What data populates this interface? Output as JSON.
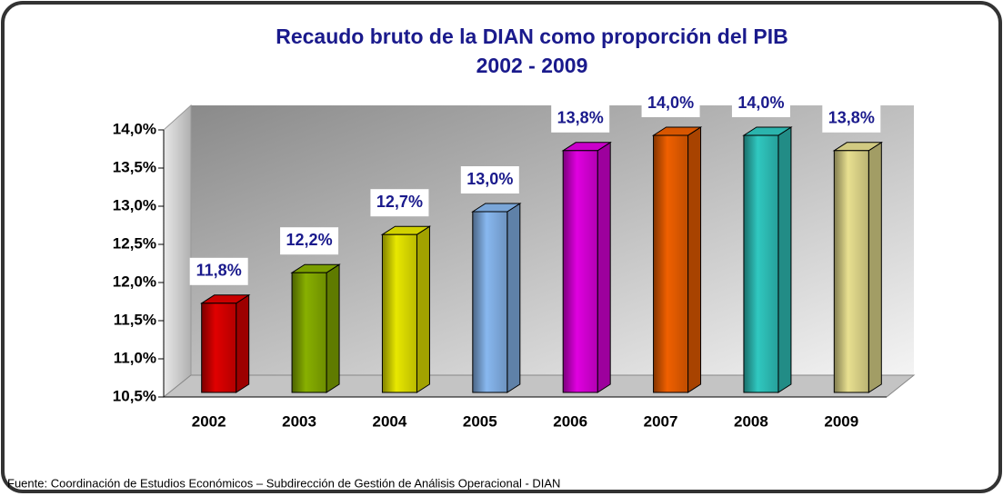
{
  "chart_data": {
    "type": "bar3d",
    "title": "Recaudo bruto de la DIAN como proporción del PIB",
    "subtitle": "2002 - 2009",
    "categories": [
      "2002",
      "2003",
      "2004",
      "2005",
      "2006",
      "2007",
      "2008",
      "2009"
    ],
    "values": [
      11.8,
      12.2,
      12.7,
      13.0,
      13.8,
      14.0,
      14.0,
      13.8
    ],
    "value_labels": [
      "11,8%",
      "12,2%",
      "12,7%",
      "13,0%",
      "13,8%",
      "14,0%",
      "14,0%",
      "13,8%"
    ],
    "colors": [
      "#e00000",
      "#88b000",
      "#e8e800",
      "#88b8f0",
      "#e000e0",
      "#f06000",
      "#30c8c0",
      "#e8e090"
    ],
    "ylim": [
      10.5,
      14.0
    ],
    "yticks": [
      {
        "value": 10.5,
        "label": "10,5%"
      },
      {
        "value": 11.0,
        "label": "11,0%"
      },
      {
        "value": 11.5,
        "label": "11,5%"
      },
      {
        "value": 12.0,
        "label": "12,0%"
      },
      {
        "value": 12.5,
        "label": "12,5%"
      },
      {
        "value": 13.0,
        "label": "13,0%"
      },
      {
        "value": 13.5,
        "label": "13,5%"
      },
      {
        "value": 14.0,
        "label": "14,0%"
      }
    ],
    "grid": false,
    "annotation": "Fuente: Coordinación de Estudios Económicos – Subdirección de Gestión de Análisis Operacional - DIAN"
  }
}
